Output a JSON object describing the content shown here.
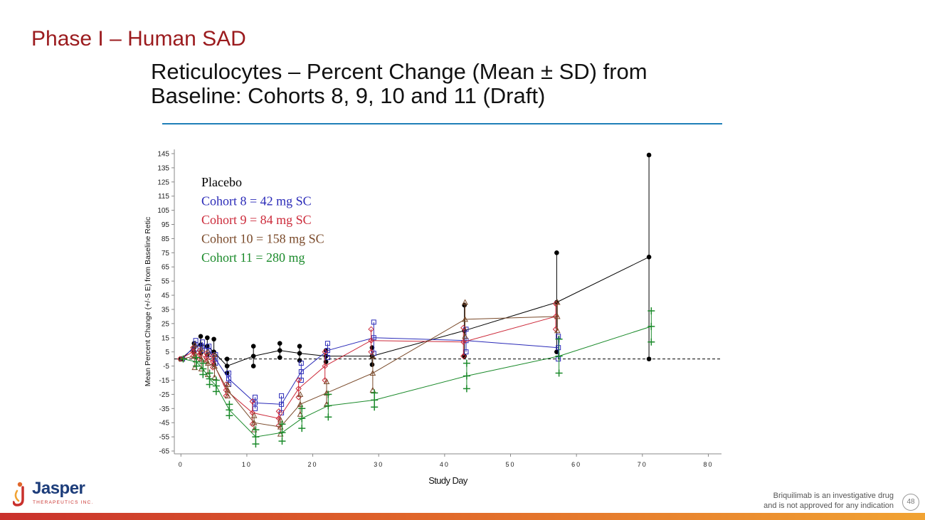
{
  "slide": {
    "title": "Phase I – Human SAD",
    "page_number": "48",
    "disclaimer_line1": "Briquilimab  is an investigative drug",
    "disclaimer_line2": "and is not approved for any indication",
    "logo_name": "Jasper",
    "logo_sub": "THERAPEUTICS INC."
  },
  "chart_data": {
    "type": "line",
    "title_line1": "Reticulocytes – Percent Change (Mean ± SD) from",
    "title_line2": "Baseline: Cohorts 8, 9, 10 and 11 (Draft)",
    "xlabel": "Study Day",
    "ylabel": "Mean Percent Change (+/-S E) from Baseline Retic",
    "xlim": [
      -1,
      82
    ],
    "ylim": [
      -67,
      148
    ],
    "xticks": [
      0,
      10,
      20,
      30,
      40,
      50,
      60,
      70,
      80
    ],
    "yticks": [
      145,
      135,
      125,
      115,
      105,
      95,
      85,
      75,
      65,
      55,
      45,
      35,
      25,
      15,
      5,
      -5,
      -15,
      -25,
      -35,
      -45,
      -55,
      -65
    ],
    "reference_line_y": 0,
    "legend_position": "top-left",
    "colors": {
      "placebo": "#000000",
      "cohort8": "#2a2ab8",
      "cohort9": "#cc2a3a",
      "cohort10": "#7a4a2a",
      "cohort11": "#1a8a2a"
    },
    "series": [
      {
        "name": "Placebo",
        "marker": "circle",
        "color": "#000000",
        "points": [
          [
            0,
            0
          ],
          [
            2,
            8
          ],
          [
            3,
            10
          ],
          [
            4,
            9
          ],
          [
            5,
            5
          ],
          [
            7,
            -5
          ],
          [
            11,
            2
          ],
          [
            15,
            6
          ],
          [
            18,
            4
          ],
          [
            22,
            2
          ],
          [
            29,
            2
          ],
          [
            43,
            20
          ],
          [
            57,
            40
          ],
          [
            71,
            72
          ]
        ],
        "errors": [
          [
            0,
            0
          ],
          [
            2,
            3
          ],
          [
            3,
            6
          ],
          [
            4,
            6
          ],
          [
            5,
            9
          ],
          [
            7,
            5
          ],
          [
            11,
            7
          ],
          [
            15,
            5
          ],
          [
            18,
            5
          ],
          [
            22,
            4
          ],
          [
            29,
            6
          ],
          [
            43,
            18
          ],
          [
            57,
            35
          ],
          [
            71,
            72
          ]
        ]
      },
      {
        "name": "Cohort 8 = 42 mg SC",
        "marker": "square",
        "color": "#2a2ab8",
        "points": [
          [
            0,
            0
          ],
          [
            2,
            10
          ],
          [
            3,
            9
          ],
          [
            4,
            6
          ],
          [
            5,
            0
          ],
          [
            7,
            -14
          ],
          [
            11,
            -31
          ],
          [
            15,
            -32
          ],
          [
            18,
            -9
          ],
          [
            22,
            6
          ],
          [
            29,
            15
          ],
          [
            43,
            13
          ],
          [
            57,
            8
          ]
        ],
        "errors": [
          [
            0,
            0
          ],
          [
            2,
            3
          ],
          [
            3,
            3
          ],
          [
            4,
            3
          ],
          [
            5,
            3
          ],
          [
            7,
            4
          ],
          [
            11,
            4
          ],
          [
            15,
            6
          ],
          [
            18,
            6
          ],
          [
            22,
            5
          ],
          [
            29,
            11
          ],
          [
            43,
            8
          ],
          [
            57,
            8
          ]
        ]
      },
      {
        "name": "Cohort 9 = 84 mg SC",
        "marker": "diamond",
        "color": "#cc2a3a",
        "points": [
          [
            0,
            0
          ],
          [
            2,
            5
          ],
          [
            3,
            3
          ],
          [
            4,
            1
          ],
          [
            5,
            -2
          ],
          [
            7,
            -22
          ],
          [
            11,
            -38
          ],
          [
            15,
            -42
          ],
          [
            18,
            -21
          ],
          [
            22,
            -5
          ],
          [
            29,
            13
          ],
          [
            43,
            12
          ],
          [
            57,
            30
          ]
        ],
        "errors": [
          [
            0,
            0
          ],
          [
            2,
            3
          ],
          [
            3,
            3
          ],
          [
            4,
            3
          ],
          [
            5,
            4
          ],
          [
            7,
            4
          ],
          [
            11,
            8
          ],
          [
            15,
            5
          ],
          [
            18,
            6
          ],
          [
            22,
            10
          ],
          [
            29,
            8
          ],
          [
            43,
            10
          ],
          [
            57,
            9
          ]
        ]
      },
      {
        "name": "Cohort 10 = 158 mg SC",
        "marker": "triangle",
        "color": "#7a4a2a",
        "points": [
          [
            0,
            0
          ],
          [
            2,
            2
          ],
          [
            3,
            0
          ],
          [
            4,
            -3
          ],
          [
            5,
            -5
          ],
          [
            7,
            -22
          ],
          [
            11,
            -45
          ],
          [
            15,
            -48
          ],
          [
            18,
            -32
          ],
          [
            22,
            -24
          ],
          [
            29,
            -10
          ],
          [
            43,
            28
          ],
          [
            57,
            30
          ]
        ],
        "errors": [
          [
            0,
            0
          ],
          [
            2,
            8
          ],
          [
            3,
            7
          ],
          [
            4,
            8
          ],
          [
            5,
            8
          ],
          [
            7,
            4
          ],
          [
            11,
            5
          ],
          [
            15,
            5
          ],
          [
            18,
            7
          ],
          [
            22,
            8
          ],
          [
            29,
            12
          ],
          [
            43,
            12
          ],
          [
            57,
            10
          ]
        ]
      },
      {
        "name": "Cohort 11 = 280 mg",
        "marker": "plus",
        "color": "#1a8a2a",
        "points": [
          [
            0,
            0
          ],
          [
            2,
            -2
          ],
          [
            3,
            -7
          ],
          [
            4,
            -14
          ],
          [
            5,
            -19
          ],
          [
            7,
            -36
          ],
          [
            11,
            -55
          ],
          [
            15,
            -52
          ],
          [
            18,
            -42
          ],
          [
            22,
            -33
          ],
          [
            29,
            -29
          ],
          [
            43,
            -12
          ],
          [
            57,
            2
          ],
          [
            71,
            23
          ]
        ],
        "errors": [
          [
            0,
            0
          ],
          [
            2,
            3
          ],
          [
            3,
            4
          ],
          [
            4,
            4
          ],
          [
            5,
            4
          ],
          [
            7,
            4
          ],
          [
            11,
            5
          ],
          [
            15,
            6
          ],
          [
            18,
            7
          ],
          [
            22,
            8
          ],
          [
            29,
            5
          ],
          [
            43,
            9
          ],
          [
            57,
            12
          ],
          [
            71,
            11
          ]
        ]
      }
    ]
  }
}
